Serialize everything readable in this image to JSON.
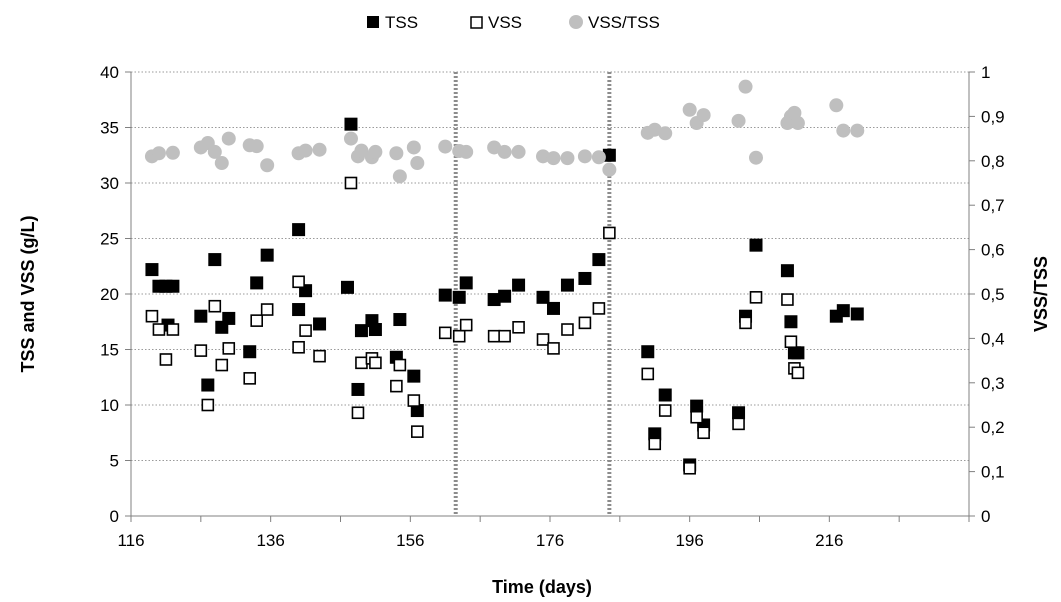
{
  "chart_data": {
    "type": "scatter",
    "xlabel": "Time (days)",
    "ylabel": "TSS and VSS (g/L)",
    "y2label": "VSS/TSS",
    "xlim": [
      116,
      236
    ],
    "ylim": [
      0,
      40
    ],
    "y2lim": [
      0,
      1
    ],
    "x_ticks": [
      "116",
      "136",
      "156",
      "176",
      "196",
      "216"
    ],
    "y_ticks": [
      "0",
      "5",
      "10",
      "15",
      "20",
      "25",
      "30",
      "35",
      "40"
    ],
    "y2_ticks": [
      "0",
      "0,1",
      "0,2",
      "0,3",
      "0,4",
      "0,5",
      "0,6",
      "0,7",
      "0,8",
      "0,9",
      "1"
    ],
    "grid": "horizontal dotted",
    "legend_position": "top",
    "vertical_markers": [
      162.5,
      184.5
    ],
    "series": [
      {
        "name": "TSS",
        "axis": "left",
        "marker": "filled-square",
        "color": "#000000",
        "points": [
          [
            119,
            22.2
          ],
          [
            120,
            20.7
          ],
          [
            121,
            20.7
          ],
          [
            121.3,
            17.2
          ],
          [
            122,
            20.7
          ],
          [
            126,
            18.0
          ],
          [
            127,
            11.8
          ],
          [
            128,
            23.1
          ],
          [
            129,
            17.0
          ],
          [
            130,
            17.8
          ],
          [
            133,
            14.8
          ],
          [
            134,
            21.0
          ],
          [
            135.5,
            23.5
          ],
          [
            140,
            25.8
          ],
          [
            140,
            18.6
          ],
          [
            141,
            20.3
          ],
          [
            143,
            17.3
          ],
          [
            147,
            20.6
          ],
          [
            147.5,
            35.3
          ],
          [
            148.5,
            11.4
          ],
          [
            149,
            16.7
          ],
          [
            150.5,
            17.6
          ],
          [
            151,
            16.8
          ],
          [
            154,
            14.3
          ],
          [
            154.5,
            17.7
          ],
          [
            156.5,
            12.6
          ],
          [
            157,
            9.5
          ],
          [
            161,
            19.9
          ],
          [
            163,
            19.7
          ],
          [
            164,
            21.0
          ],
          [
            168,
            19.5
          ],
          [
            169.5,
            19.8
          ],
          [
            171.5,
            20.8
          ],
          [
            175,
            19.7
          ],
          [
            176.5,
            18.7
          ],
          [
            178.5,
            20.8
          ],
          [
            181,
            21.4
          ],
          [
            183,
            23.1
          ],
          [
            184.5,
            32.5
          ],
          [
            190,
            14.8
          ],
          [
            191,
            7.4
          ],
          [
            192.5,
            10.9
          ],
          [
            196,
            4.6
          ],
          [
            197,
            9.9
          ],
          [
            198,
            8.2
          ],
          [
            203,
            9.3
          ],
          [
            204,
            18.0
          ],
          [
            205.5,
            24.4
          ],
          [
            210,
            22.1
          ],
          [
            210.5,
            17.5
          ],
          [
            211,
            14.7
          ],
          [
            211.5,
            14.7
          ],
          [
            217,
            18.0
          ],
          [
            218,
            18.5
          ],
          [
            220,
            18.2
          ]
        ]
      },
      {
        "name": "VSS",
        "axis": "left",
        "marker": "open-square",
        "color": "#000000",
        "points": [
          [
            119,
            18.0
          ],
          [
            120,
            16.8
          ],
          [
            121,
            14.1
          ],
          [
            122,
            16.8
          ],
          [
            126,
            14.9
          ],
          [
            127,
            10.0
          ],
          [
            128,
            18.9
          ],
          [
            129,
            13.6
          ],
          [
            130,
            15.1
          ],
          [
            133,
            12.4
          ],
          [
            134,
            17.6
          ],
          [
            135.5,
            18.6
          ],
          [
            140,
            21.1
          ],
          [
            140,
            15.2
          ],
          [
            141,
            16.7
          ],
          [
            143,
            14.4
          ],
          [
            147.5,
            30.0
          ],
          [
            148.5,
            9.3
          ],
          [
            149,
            13.8
          ],
          [
            150.5,
            14.2
          ],
          [
            151,
            13.8
          ],
          [
            154,
            11.7
          ],
          [
            154.5,
            13.6
          ],
          [
            156.5,
            10.4
          ],
          [
            157,
            7.6
          ],
          [
            161,
            16.5
          ],
          [
            163,
            16.2
          ],
          [
            164,
            17.2
          ],
          [
            168,
            16.2
          ],
          [
            169.5,
            16.2
          ],
          [
            171.5,
            17.0
          ],
          [
            175,
            15.9
          ],
          [
            176.5,
            15.1
          ],
          [
            178.5,
            16.8
          ],
          [
            181,
            17.4
          ],
          [
            183,
            18.7
          ],
          [
            184.5,
            25.5
          ],
          [
            190,
            12.8
          ],
          [
            191,
            6.5
          ],
          [
            192.5,
            9.5
          ],
          [
            196,
            4.3
          ],
          [
            197,
            8.9
          ],
          [
            198,
            7.5
          ],
          [
            203,
            8.3
          ],
          [
            204,
            17.4
          ],
          [
            205.5,
            19.7
          ],
          [
            210,
            19.5
          ],
          [
            210.5,
            15.7
          ],
          [
            211,
            13.3
          ],
          [
            211.5,
            12.9
          ]
        ]
      },
      {
        "name": "VSS/TSS",
        "axis": "right",
        "marker": "filled-circle",
        "color": "#BFBFBF",
        "points": [
          [
            119,
            0.81
          ],
          [
            120,
            0.817
          ],
          [
            122,
            0.818
          ],
          [
            126,
            0.83
          ],
          [
            127,
            0.84
          ],
          [
            128,
            0.82
          ],
          [
            129,
            0.795
          ],
          [
            130,
            0.85
          ],
          [
            133,
            0.835
          ],
          [
            134,
            0.833
          ],
          [
            135.5,
            0.79
          ],
          [
            140,
            0.817
          ],
          [
            141,
            0.823
          ],
          [
            143,
            0.825
          ],
          [
            147.5,
            0.85
          ],
          [
            148.5,
            0.81
          ],
          [
            149,
            0.823
          ],
          [
            150.5,
            0.808
          ],
          [
            151,
            0.82
          ],
          [
            154,
            0.817
          ],
          [
            154.5,
            0.765
          ],
          [
            156.5,
            0.83
          ],
          [
            157,
            0.795
          ],
          [
            161,
            0.832
          ],
          [
            163,
            0.822
          ],
          [
            164,
            0.82
          ],
          [
            168,
            0.83
          ],
          [
            169.5,
            0.82
          ],
          [
            171.5,
            0.82
          ],
          [
            175,
            0.81
          ],
          [
            176.5,
            0.806
          ],
          [
            178.5,
            0.806
          ],
          [
            181,
            0.81
          ],
          [
            183,
            0.808
          ],
          [
            184.5,
            0.78
          ],
          [
            190,
            0.863
          ],
          [
            191,
            0.87
          ],
          [
            192.5,
            0.862
          ],
          [
            196,
            0.915
          ],
          [
            197,
            0.885
          ],
          [
            198,
            0.903
          ],
          [
            203,
            0.89
          ],
          [
            204,
            0.967
          ],
          [
            205.5,
            0.807
          ],
          [
            210,
            0.885
          ],
          [
            210.5,
            0.9
          ],
          [
            211,
            0.908
          ],
          [
            211.5,
            0.885
          ],
          [
            217,
            0.925
          ],
          [
            218,
            0.868
          ],
          [
            220,
            0.868
          ]
        ]
      }
    ]
  }
}
